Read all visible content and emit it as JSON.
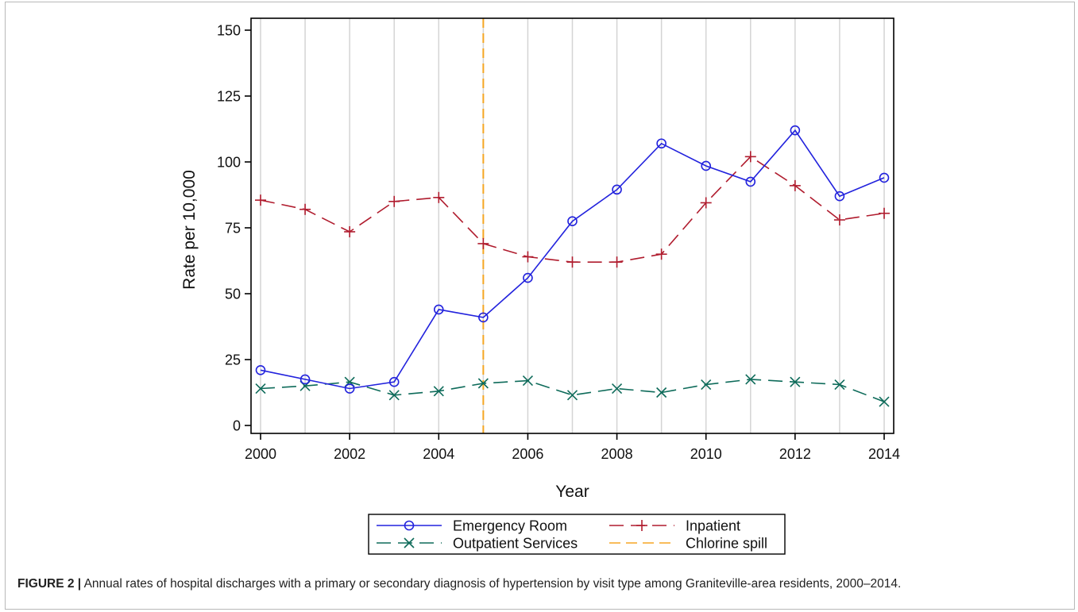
{
  "figure": {
    "caption_label": "FIGURE 2 |",
    "caption_text": "Annual rates of hospital discharges with a primary or secondary diagnosis of hypertension by visit type among Graniteville-area residents, 2000–2014."
  },
  "chart_data": {
    "type": "line",
    "title": "",
    "xlabel": "Year",
    "ylabel": "Rate per 10,000",
    "xlim": [
      2000,
      2014
    ],
    "ylim": [
      0,
      150
    ],
    "x_ticks": [
      2000,
      2002,
      2004,
      2006,
      2008,
      2010,
      2012,
      2014
    ],
    "y_ticks": [
      0,
      25,
      50,
      75,
      100,
      125,
      150
    ],
    "vertical_gridlines": true,
    "legend_position": "bottom-center",
    "x": [
      2000,
      2001,
      2002,
      2003,
      2004,
      2005,
      2006,
      2007,
      2008,
      2009,
      2010,
      2011,
      2012,
      2013,
      2014
    ],
    "series": [
      {
        "name": "Emergency Room",
        "color": "#2222dd",
        "marker": "circle",
        "dash": "solid",
        "values": [
          21,
          17.5,
          14,
          16.5,
          44,
          41,
          56,
          77.5,
          89.5,
          107,
          98.5,
          92.5,
          112,
          87,
          94
        ]
      },
      {
        "name": "Inpatient",
        "color": "#b01c2e",
        "marker": "plus",
        "dash": "dashed",
        "values": [
          85.5,
          82,
          73.5,
          85,
          86.5,
          69,
          64,
          62,
          62,
          65,
          84.5,
          102,
          91,
          78,
          80.5
        ]
      },
      {
        "name": "Outpatient Services",
        "color": "#0e6b5a",
        "marker": "x",
        "dash": "dashed",
        "values": [
          14,
          15,
          16.5,
          11.5,
          13,
          16,
          17,
          11.5,
          14,
          12.5,
          15.5,
          17.5,
          16.5,
          15.5,
          9
        ]
      }
    ],
    "annotations": [
      {
        "name": "Chlorine spill",
        "type": "vertical_line",
        "x": 2005,
        "color": "#f5a623",
        "dash": "dashed"
      }
    ]
  }
}
